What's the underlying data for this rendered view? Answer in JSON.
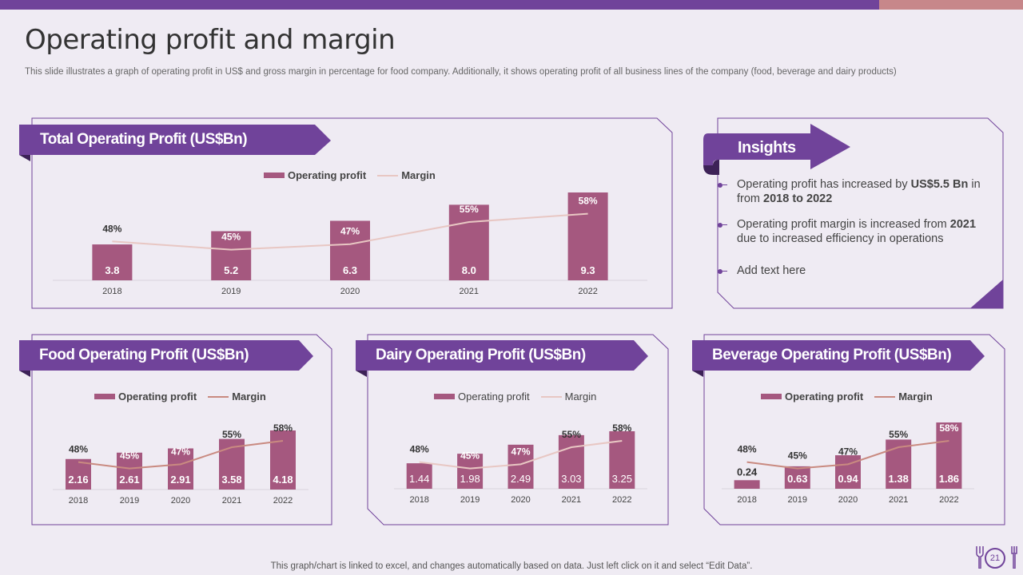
{
  "page": {
    "title": "Operating profit and margin",
    "subtitle": "This slide illustrates a graph of operating profit in US$ and gross margin in percentage for food company. Additionally, it shows operating profit of all business lines of the company (food, beverage and dairy products)",
    "footer": "This graph/chart is linked to excel,  and changes automatically based on data. Just left click on it and select “Edit Data”.",
    "page_number": "21",
    "colors": {
      "purple": "#70439a",
      "bar": "#a5587f",
      "margin_line": "#e8c7c3",
      "margin_line_small": "#c98a80",
      "accent_pink": "#c7878a"
    },
    "icons": [
      "fork-icon",
      "knife-icon"
    ]
  },
  "insights": {
    "title": "Insights",
    "points": [
      {
        "pre": "Operating profit has increased by ",
        "bold1": "US$5.5 Bn",
        "mid": " in from ",
        "bold2": "2018 to 2022",
        "post": ""
      },
      {
        "pre": "Operating profit margin is increased from ",
        "bold1": "2021",
        "mid": " due to increased efficiency in operations",
        "bold2": "",
        "post": ""
      },
      {
        "pre": "Add text here",
        "bold1": "",
        "mid": "",
        "bold2": "",
        "post": ""
      }
    ]
  },
  "chart_data": [
    {
      "id": "total",
      "type": "bar",
      "title": "Total Operating Profit (US$Bn)",
      "legend": [
        "Operating profit",
        "Margin"
      ],
      "legend_position": "top-center",
      "categories": [
        "2018",
        "2019",
        "2020",
        "2021",
        "2022"
      ],
      "series": [
        {
          "name": "Operating profit",
          "type": "bar",
          "values": [
            3.8,
            5.2,
            6.3,
            8.0,
            9.3
          ],
          "labels": [
            "3.8",
            "5.2",
            "6.3",
            "8.0",
            "9.3"
          ]
        },
        {
          "name": "Margin",
          "type": "line",
          "values": [
            48,
            45,
            47,
            55,
            58
          ],
          "labels": [
            "48%",
            "45%",
            "47%",
            "55%",
            "58%"
          ]
        }
      ],
      "grid": false
    },
    {
      "id": "food",
      "type": "bar",
      "title": "Food Operating Profit (US$Bn)",
      "legend": [
        "Operating profit",
        "Margin"
      ],
      "legend_position": "top-center",
      "categories": [
        "2018",
        "2019",
        "2020",
        "2021",
        "2022"
      ],
      "series": [
        {
          "name": "Operating profit",
          "type": "bar",
          "values": [
            2.16,
            2.61,
            2.91,
            3.58,
            4.18
          ],
          "labels": [
            "2.16",
            "2.61",
            "2.91",
            "3.58",
            "4.18"
          ]
        },
        {
          "name": "Margin",
          "type": "line",
          "values": [
            48,
            45,
            47,
            55,
            58
          ],
          "labels": [
            "48%",
            "45%",
            "47%",
            "55%",
            "58%"
          ]
        }
      ],
      "grid": false
    },
    {
      "id": "dairy",
      "type": "bar",
      "title": "Dairy Operating Profit (US$Bn)",
      "legend": [
        "Operating profit",
        "Margin"
      ],
      "legend_position": "top-center",
      "categories": [
        "2018",
        "2019",
        "2020",
        "2021",
        "2022"
      ],
      "series": [
        {
          "name": "Operating profit",
          "type": "bar",
          "values": [
            1.44,
            1.98,
            2.49,
            3.03,
            3.25
          ],
          "labels": [
            "1.44",
            "1.98",
            "2.49",
            "3.03",
            "3.25"
          ]
        },
        {
          "name": "Margin",
          "type": "line",
          "values": [
            48,
            45,
            47,
            55,
            58
          ],
          "labels": [
            "48%",
            "45%",
            "47%",
            "55%",
            "58%"
          ]
        }
      ],
      "grid": false
    },
    {
      "id": "beverage",
      "type": "bar",
      "title": "Beverage Operating Profit (US$Bn)",
      "legend": [
        "Operating profit",
        "Margin"
      ],
      "legend_position": "top-center",
      "categories": [
        "2018",
        "2019",
        "2020",
        "2021",
        "2022"
      ],
      "series": [
        {
          "name": "Operating profit",
          "type": "bar",
          "values": [
            0.24,
            0.63,
            0.94,
            1.38,
            1.86
          ],
          "labels": [
            "0.24",
            "0.63",
            "0.94",
            "1.38",
            "1.86"
          ]
        },
        {
          "name": "Margin",
          "type": "line",
          "values": [
            48,
            45,
            47,
            55,
            58
          ],
          "labels": [
            "48%",
            "45%",
            "47%",
            "55%",
            "58%"
          ]
        }
      ],
      "grid": false
    }
  ]
}
